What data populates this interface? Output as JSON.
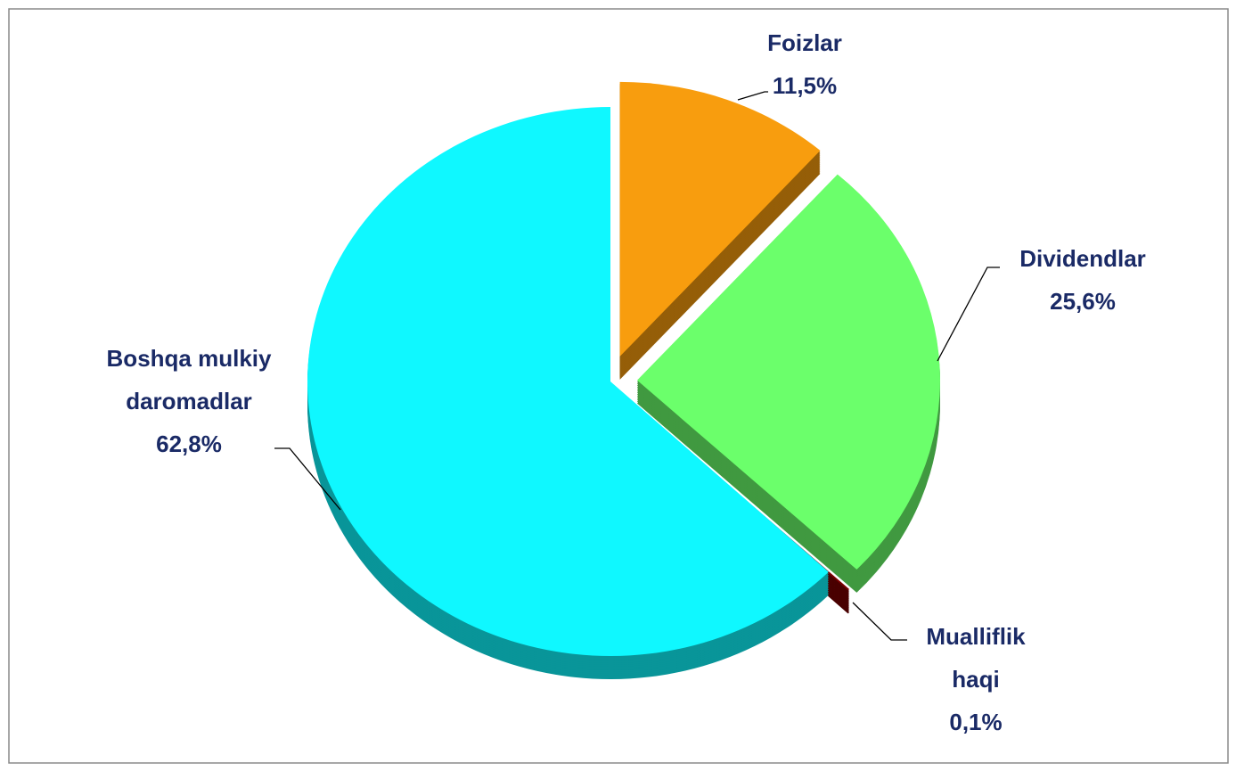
{
  "chart_data": {
    "type": "pie",
    "categories": [
      "Foizlar",
      "Dividendlar",
      "Mualliflik haqi",
      "Boshqa mulkiy daromadlar"
    ],
    "values": [
      11.5,
      25.6,
      0.1,
      62.8
    ],
    "value_labels": [
      "11,5%",
      "25,6%",
      "0,1%",
      "62,8%"
    ],
    "colors": [
      "#f89d0e",
      "#6bff6b",
      "#7a0000",
      "#0ff8ff"
    ]
  }
}
